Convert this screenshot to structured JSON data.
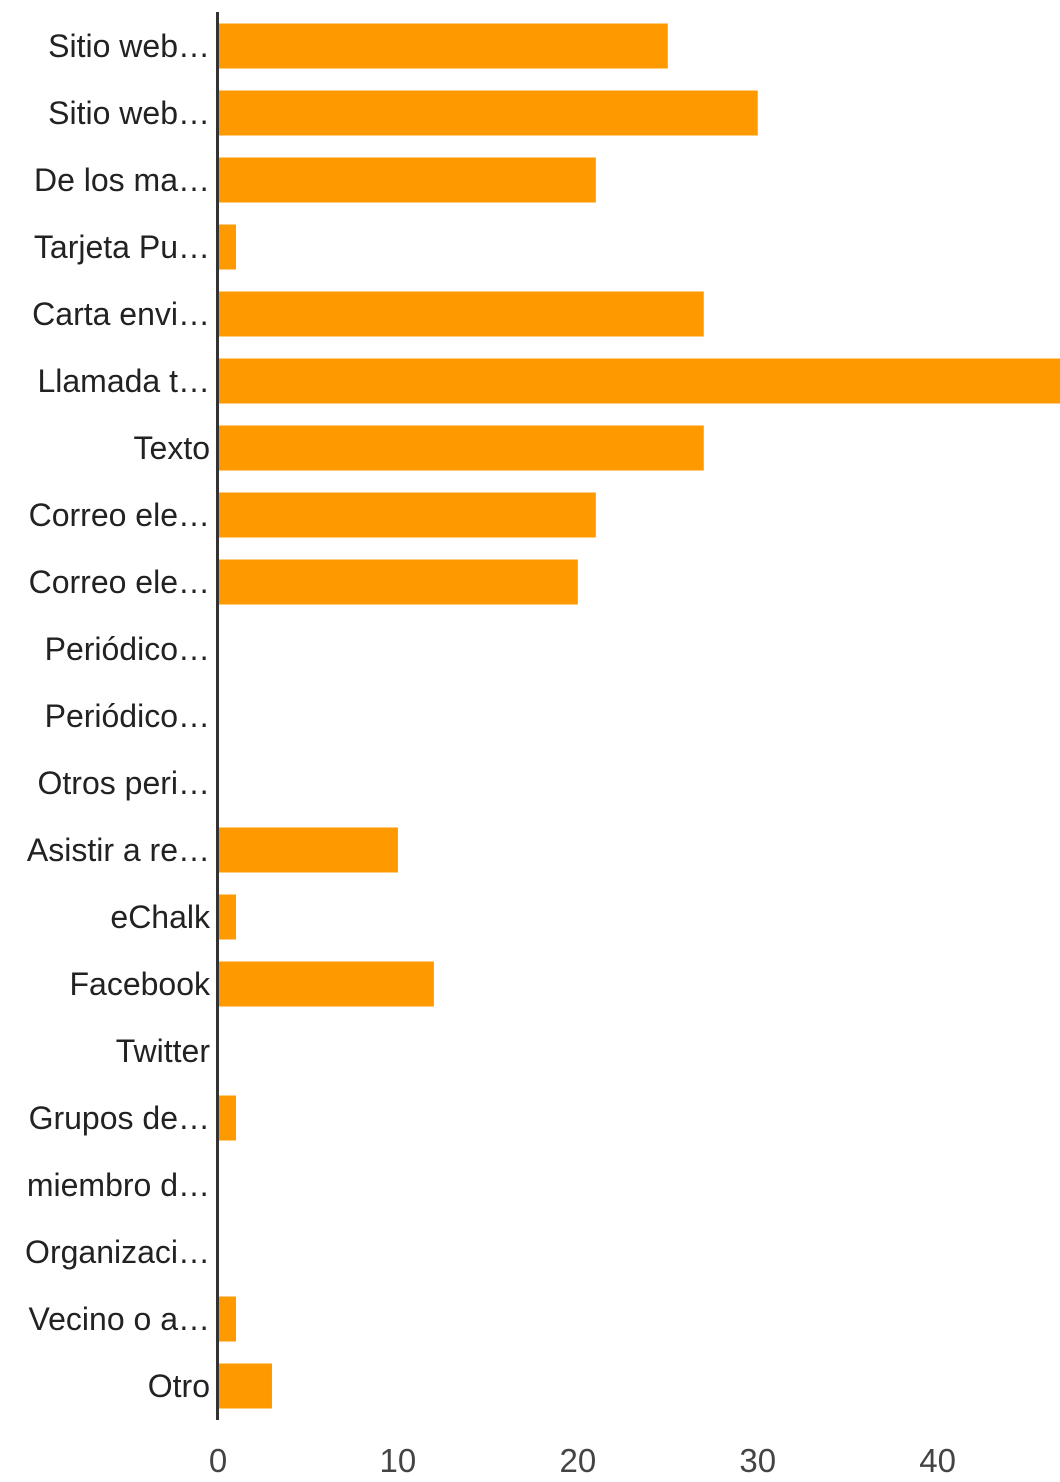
{
  "chart_data": {
    "type": "bar",
    "orientation": "horizontal",
    "title": "",
    "xlabel": "",
    "ylabel": "",
    "categories": [
      "Sitio web…",
      "Sitio web…",
      "De los ma…",
      "Tarjeta Pu…",
      "Carta envi…",
      "Llamada t…",
      "Texto",
      "Correo ele…",
      "Correo ele…",
      "Periódico…",
      "Periódico…",
      "Otros peri…",
      "Asistir a re…",
      "eChalk",
      "Facebook",
      "Twitter",
      "Grupos de…",
      "miembro d…",
      "Organizaci…",
      "Vecino o a…",
      "Otro"
    ],
    "values": [
      25,
      30,
      21,
      1,
      27,
      48,
      27,
      21,
      20,
      0,
      0,
      0,
      10,
      1,
      12,
      0,
      1,
      0,
      0,
      1,
      3
    ],
    "xlim": [
      0,
      46.8
    ],
    "xticks": [
      0,
      10,
      20,
      30,
      40
    ],
    "bar_color": "#ff9900",
    "axis_color": "#333333",
    "text_color": "#222222",
    "grid": false,
    "legend": "none"
  }
}
